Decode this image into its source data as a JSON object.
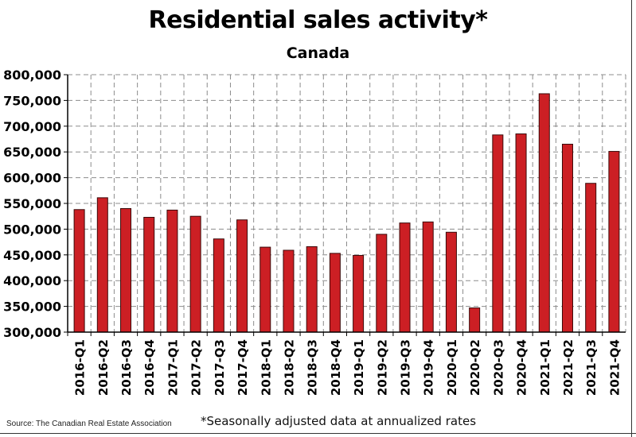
{
  "chart_data": {
    "type": "bar",
    "title": "Residential sales activity*",
    "subtitle": "Canada",
    "xlabel": "",
    "ylabel": "",
    "categories": [
      "2016-Q1",
      "2016-Q2",
      "2016-Q3",
      "2016-Q4",
      "2017-Q1",
      "2017-Q2",
      "2017-Q3",
      "2017-Q4",
      "2018-Q1",
      "2018-Q2",
      "2018-Q3",
      "2018-Q4",
      "2019-Q1",
      "2019-Q2",
      "2019-Q3",
      "2019-Q4",
      "2020-Q1",
      "2020-Q2",
      "2020-Q3",
      "2020-Q4",
      "2021-Q1",
      "2021-Q2",
      "2021-Q3",
      "2021-Q4"
    ],
    "values": [
      538000,
      561000,
      540000,
      523000,
      537000,
      525000,
      481000,
      518000,
      465000,
      459000,
      466000,
      453000,
      449000,
      490000,
      512000,
      514000,
      494000,
      347000,
      683000,
      685000,
      763000,
      665000,
      589000,
      651000
    ],
    "ylim": [
      300000,
      800000
    ],
    "y_ticks": [
      "300,000",
      "350,000",
      "400,000",
      "450,000",
      "500,000",
      "550,000",
      "600,000",
      "650,000",
      "700,000",
      "750,000",
      "800,000"
    ],
    "grid": true,
    "bar_color": "#cc1f24",
    "footnote": "*Seasonally adjusted data at annualized rates",
    "source": "Source: The Canadian Real Estate Association"
  }
}
